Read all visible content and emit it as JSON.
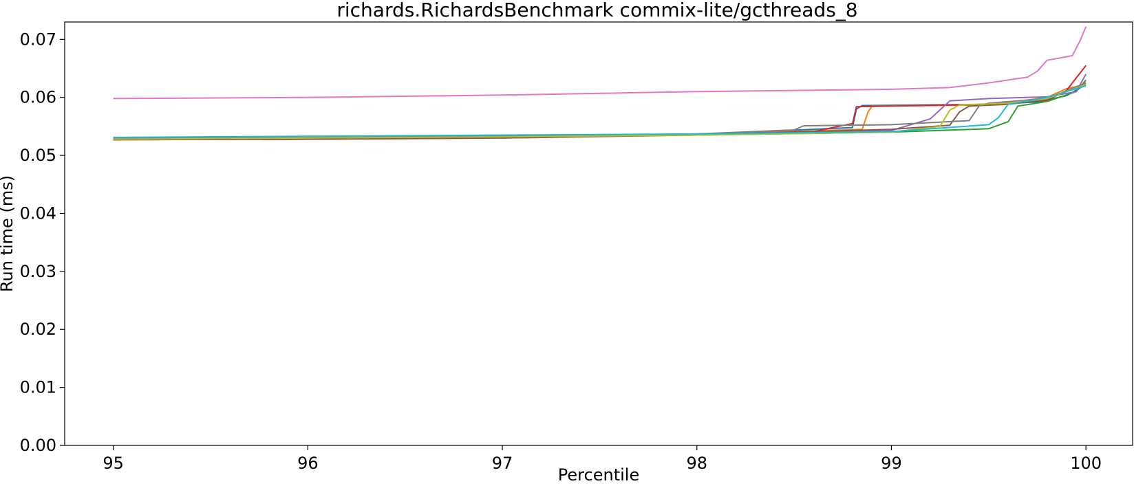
{
  "chart_data": {
    "type": "line",
    "title": "richards.RichardsBenchmark commix-lite/gcthreads_8",
    "xlabel": "Percentile",
    "ylabel": "Run time (ms)",
    "xlim": [
      94.75,
      100.24
    ],
    "ylim": [
      0.0,
      0.073
    ],
    "xticks": [
      95,
      96,
      97,
      98,
      99,
      100
    ],
    "xtick_labels": [
      "95",
      "96",
      "97",
      "98",
      "99",
      "100"
    ],
    "yticks": [
      0.0,
      0.01,
      0.02,
      0.03,
      0.04,
      0.05,
      0.06,
      0.07
    ],
    "ytick_labels": [
      "0.00",
      "0.01",
      "0.02",
      "0.03",
      "0.04",
      "0.05",
      "0.06",
      "0.07"
    ],
    "grid": false,
    "legend": "none",
    "series": [
      {
        "color": "#1f77b4",
        "x": [
          95,
          96,
          97,
          98,
          98.8,
          98.82,
          98.85,
          99.5,
          99.75,
          99.9,
          100
        ],
        "y": [
          0.053,
          0.0531,
          0.0533,
          0.0536,
          0.0548,
          0.058,
          0.0586,
          0.0588,
          0.0592,
          0.0603,
          0.0622
        ]
      },
      {
        "color": "#ff7f0e",
        "x": [
          95,
          96,
          97,
          98,
          98.85,
          98.88,
          98.9,
          99.5,
          99.8,
          99.9,
          100
        ],
        "y": [
          0.0527,
          0.0528,
          0.053,
          0.0536,
          0.0545,
          0.0575,
          0.0585,
          0.0587,
          0.06,
          0.0615,
          0.0622
        ]
      },
      {
        "color": "#2ca02c",
        "x": [
          95,
          96,
          97,
          98,
          99,
          99.5,
          99.6,
          99.65,
          99.8,
          99.95,
          100
        ],
        "y": [
          0.0529,
          0.0531,
          0.0533,
          0.0535,
          0.054,
          0.0546,
          0.0558,
          0.0585,
          0.0593,
          0.061,
          0.063
        ]
      },
      {
        "color": "#d62728",
        "x": [
          95,
          96,
          97,
          98,
          98.6,
          98.8,
          98.82,
          99.5,
          99.8,
          99.9,
          100
        ],
        "y": [
          0.0527,
          0.0528,
          0.0531,
          0.0537,
          0.0541,
          0.0555,
          0.0584,
          0.0588,
          0.0595,
          0.0612,
          0.0655
        ]
      },
      {
        "color": "#9467bd",
        "x": [
          95,
          96,
          97,
          98,
          99,
          99.2,
          99.3,
          99.5,
          99.8,
          99.95,
          100
        ],
        "y": [
          0.0529,
          0.0531,
          0.0533,
          0.0537,
          0.0543,
          0.0563,
          0.0594,
          0.0598,
          0.0601,
          0.061,
          0.064
        ]
      },
      {
        "color": "#8c564b",
        "x": [
          95,
          96,
          97,
          98,
          99,
          99.3,
          99.35,
          99.4,
          99.6,
          99.8,
          100
        ],
        "y": [
          0.0527,
          0.0528,
          0.053,
          0.0535,
          0.0545,
          0.0552,
          0.0575,
          0.0585,
          0.0588,
          0.0596,
          0.0625
        ]
      },
      {
        "color": "#e377c2",
        "x": [
          95,
          96,
          97,
          98,
          98.5,
          99,
          99.3,
          99.5,
          99.6,
          99.7,
          99.75,
          99.8,
          99.9,
          99.93,
          99.97,
          100
        ],
        "y": [
          0.0598,
          0.06,
          0.0604,
          0.061,
          0.0612,
          0.0614,
          0.0617,
          0.0625,
          0.063,
          0.0635,
          0.0645,
          0.0664,
          0.067,
          0.0672,
          0.0698,
          0.0722
        ]
      },
      {
        "color": "#7f7f7f",
        "x": [
          95,
          96,
          97,
          98,
          98.5,
          98.55,
          99,
          99.4,
          99.45,
          99.5,
          99.8,
          100
        ],
        "y": [
          0.0528,
          0.053,
          0.0532,
          0.0537,
          0.0544,
          0.0551,
          0.0553,
          0.056,
          0.0585,
          0.059,
          0.0598,
          0.0625
        ]
      },
      {
        "color": "#bcbd22",
        "x": [
          95,
          96,
          97,
          98,
          99,
          99.25,
          99.3,
          99.35,
          99.6,
          99.8,
          100
        ],
        "y": [
          0.0528,
          0.053,
          0.0532,
          0.0535,
          0.054,
          0.055,
          0.0578,
          0.0587,
          0.059,
          0.0598,
          0.0622
        ]
      },
      {
        "color": "#17becf",
        "x": [
          95,
          96,
          97,
          98,
          99,
          99.5,
          99.55,
          99.6,
          99.8,
          100
        ],
        "y": [
          0.0531,
          0.0533,
          0.0535,
          0.0537,
          0.0541,
          0.0553,
          0.0565,
          0.0588,
          0.06,
          0.062
        ]
      }
    ]
  }
}
